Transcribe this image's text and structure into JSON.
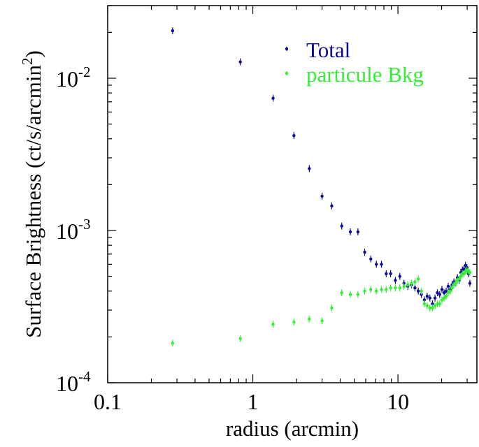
{
  "chart_data": {
    "type": "scatter",
    "title": "",
    "xlabel": "radius (arcmin)",
    "ylabel_prefix": "Surface Brightness (ct/s/arcmin",
    "ylabel_exp": "2",
    "ylabel_suffix": ")",
    "xscale": "log",
    "yscale": "log",
    "xlim": [
      0.1,
      35
    ],
    "ylim": [
      0.0001,
      0.03
    ],
    "grid": false,
    "legend_position": "top-right",
    "x_ticks": [
      {
        "value": 0.1,
        "label": "0.1"
      },
      {
        "value": 1,
        "label": "1"
      },
      {
        "value": 10,
        "label": "10"
      }
    ],
    "y_ticks": [
      {
        "value": 0.01,
        "base": "10",
        "exp": "-2"
      },
      {
        "value": 0.001,
        "base": "10",
        "exp": "-3"
      },
      {
        "value": 0.0001,
        "base": "10",
        "exp": "-4"
      }
    ],
    "series": [
      {
        "name": "Total",
        "color": "#0a0a96",
        "points": [
          [
            0.28,
            0.0205
          ],
          [
            0.82,
            0.0128
          ],
          [
            1.38,
            0.0074
          ],
          [
            1.92,
            0.0042
          ],
          [
            2.45,
            0.00255
          ],
          [
            3.0,
            0.00168
          ],
          [
            3.5,
            0.00145
          ],
          [
            4.1,
            0.00107
          ],
          [
            4.7,
            0.00098
          ],
          [
            5.3,
            0.00098
          ],
          [
            5.9,
            0.00072
          ],
          [
            6.5,
            0.00065
          ],
          [
            7.1,
            0.0006
          ],
          [
            7.7,
            0.0006
          ],
          [
            8.3,
            0.00052
          ],
          [
            8.9,
            0.00052
          ],
          [
            9.6,
            0.00047
          ],
          [
            10.3,
            0.0005
          ],
          [
            11.0,
            0.00045
          ],
          [
            11.7,
            0.00043
          ],
          [
            12.4,
            0.00044
          ],
          [
            13.1,
            0.00042
          ],
          [
            13.8,
            0.0004
          ],
          [
            14.5,
            0.00038
          ],
          [
            15.2,
            0.00035
          ],
          [
            15.9,
            0.00037
          ],
          [
            16.6,
            0.00036
          ],
          [
            17.3,
            0.00033
          ],
          [
            18.0,
            0.00036
          ],
          [
            18.7,
            0.00039
          ],
          [
            19.4,
            0.00038
          ],
          [
            20.1,
            0.00041
          ],
          [
            20.8,
            0.00039
          ],
          [
            21.5,
            0.0004
          ],
          [
            22.2,
            0.00043
          ],
          [
            22.9,
            0.00041
          ],
          [
            23.6,
            0.00044
          ],
          [
            24.3,
            0.00046
          ],
          [
            25.0,
            0.00045
          ],
          [
            25.7,
            0.00049
          ],
          [
            26.4,
            0.00047
          ],
          [
            27.1,
            0.00053
          ],
          [
            27.8,
            0.00055
          ],
          [
            28.5,
            0.00056
          ],
          [
            29.2,
            0.00059
          ],
          [
            29.9,
            0.00057
          ],
          [
            30.6,
            0.00052
          ],
          [
            31.3,
            0.00045
          ]
        ]
      },
      {
        "name": "particule Bkg",
        "color": "#33ee33",
        "points": [
          [
            0.28,
            0.000182
          ],
          [
            0.82,
            0.000195
          ],
          [
            1.38,
            0.000242
          ],
          [
            1.92,
            0.00025
          ],
          [
            2.45,
            0.000262
          ],
          [
            3.0,
            0.000255
          ],
          [
            3.5,
            0.00031
          ],
          [
            4.1,
            0.00039
          ],
          [
            4.7,
            0.00038
          ],
          [
            5.3,
            0.00038
          ],
          [
            5.9,
            0.0004
          ],
          [
            6.5,
            0.00041
          ],
          [
            7.1,
            0.0004
          ],
          [
            7.7,
            0.00041
          ],
          [
            8.3,
            0.00041
          ],
          [
            8.9,
            0.00042
          ],
          [
            9.6,
            0.00042
          ],
          [
            10.3,
            0.00042
          ],
          [
            11.0,
            0.00043
          ],
          [
            11.7,
            0.00044
          ],
          [
            12.4,
            0.00045
          ],
          [
            13.1,
            0.00046
          ],
          [
            13.8,
            0.00048
          ],
          [
            14.5,
            0.0004
          ],
          [
            15.2,
            0.00033
          ],
          [
            15.9,
            0.00032
          ],
          [
            16.6,
            0.00031
          ],
          [
            17.3,
            0.00031
          ],
          [
            18.0,
            0.00032
          ],
          [
            18.7,
            0.00033
          ],
          [
            19.4,
            0.00033
          ],
          [
            20.1,
            0.00035
          ],
          [
            20.8,
            0.00036
          ],
          [
            21.5,
            0.00037
          ],
          [
            22.2,
            0.00039
          ],
          [
            22.9,
            0.0004
          ],
          [
            23.6,
            0.00042
          ],
          [
            24.3,
            0.00044
          ],
          [
            25.0,
            0.00045
          ],
          [
            25.7,
            0.00047
          ],
          [
            26.4,
            0.00048
          ],
          [
            27.1,
            0.0005
          ],
          [
            27.8,
            0.00052
          ],
          [
            28.5,
            0.00052
          ],
          [
            29.2,
            0.00054
          ],
          [
            29.9,
            0.00055
          ],
          [
            30.6,
            0.00054
          ],
          [
            31.3,
            0.00053
          ]
        ]
      }
    ]
  }
}
